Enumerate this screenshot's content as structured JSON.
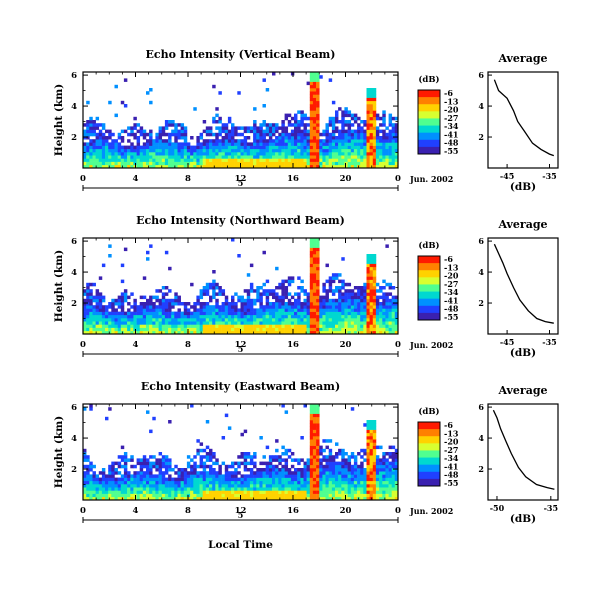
{
  "chart_data": {
    "type": "heatmap",
    "x_axis_label": "Local Time",
    "date_label": "Jun. 2002",
    "day_label": "5",
    "x_ticks": [
      "0",
      "4",
      "8",
      "12",
      "16",
      "20",
      "0"
    ],
    "y_axis_label": "Height (km)",
    "y_ticks": [
      "2",
      "4",
      "6"
    ],
    "colorbar": {
      "unit": "(dB)",
      "tick_labels": [
        "-6",
        "-13",
        "-20",
        "-27",
        "-34",
        "-41",
        "-48",
        "-55"
      ],
      "colors": [
        "#ff1a00",
        "#ff8000",
        "#ffd200",
        "#d8ff30",
        "#50ff90",
        "#00d8d0",
        "#0090ff",
        "#2040ff",
        "#3a20b0"
      ]
    },
    "panels": [
      {
        "title": "Echo Intensity (Vertical Beam)",
        "profile": {
          "title": "Average",
          "xlabel": "(dB)",
          "x_tick_labels": [
            "-45",
            "-35"
          ],
          "y_tick_labels": [
            "2",
            "4",
            "6"
          ],
          "points": [
            [
              -48,
              5.7
            ],
            [
              -47,
              5.0
            ],
            [
              -45,
              4.5
            ],
            [
              -43.5,
              3.7
            ],
            [
              -42.5,
              3.0
            ],
            [
              -41,
              2.4
            ],
            [
              -39,
              1.6
            ],
            [
              -37,
              1.2
            ],
            [
              -35,
              0.9
            ],
            [
              -34,
              0.8
            ]
          ]
        }
      },
      {
        "title": "Echo Intensity (Northward Beam)",
        "profile": {
          "title": "Average",
          "xlabel": "(dB)",
          "x_tick_labels": [
            "-45",
            "-35"
          ],
          "y_tick_labels": [
            "2",
            "4",
            "6"
          ],
          "points": [
            [
              -48,
              5.8
            ],
            [
              -47,
              5.2
            ],
            [
              -46,
              4.6
            ],
            [
              -45,
              3.9
            ],
            [
              -43.5,
              3.0
            ],
            [
              -42,
              2.2
            ],
            [
              -40,
              1.5
            ],
            [
              -38,
              1.0
            ],
            [
              -36,
              0.8
            ],
            [
              -34,
              0.7
            ]
          ]
        }
      },
      {
        "title": "Echo Intensity (Eastward Beam)",
        "profile": {
          "title": "Average",
          "xlabel": "(dB)",
          "x_tick_labels": [
            "-50",
            "-35"
          ],
          "y_tick_labels": [
            "2",
            "4",
            "6"
          ],
          "points": [
            [
              -51,
              5.8
            ],
            [
              -50,
              5.3
            ],
            [
              -49,
              4.6
            ],
            [
              -47.5,
              3.8
            ],
            [
              -46,
              3.0
            ],
            [
              -44,
              2.1
            ],
            [
              -42,
              1.5
            ],
            [
              -39,
              1.0
            ],
            [
              -36,
              0.8
            ],
            [
              -34,
              0.7
            ]
          ]
        }
      }
    ]
  }
}
